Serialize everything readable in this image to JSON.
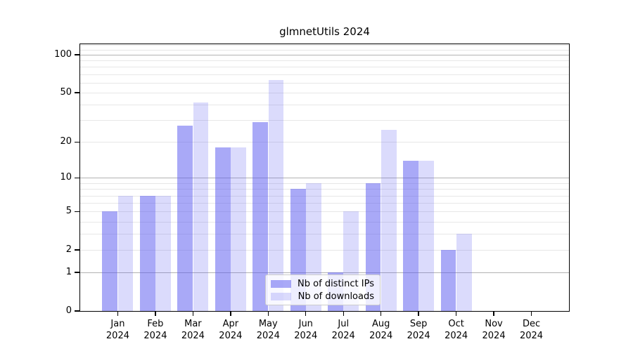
{
  "title": "glmnetUtils 2024",
  "colors": {
    "bar_base": "90,90,240",
    "ips_bar": "rgba(90,90,240,0.52)",
    "downloads_bar": "rgba(90,90,240,0.22)",
    "major_grid": "#b2b2b2",
    "minor_grid": "#e7e7e7",
    "axis": "#000000",
    "legend_border": "#cccccc"
  },
  "legend": {
    "items": [
      {
        "label": "Nb of distinct IPs",
        "color_key": "ips_bar"
      },
      {
        "label": "Nb of downloads",
        "color_key": "downloads_bar"
      }
    ]
  },
  "chart_data": {
    "type": "bar",
    "title": "glmnetUtils 2024",
    "categories": [
      "Jan 2024",
      "Feb 2024",
      "Mar 2024",
      "Apr 2024",
      "May 2024",
      "Jun 2024",
      "Jul 2024",
      "Aug 2024",
      "Sep 2024",
      "Oct 2024",
      "Nov 2024",
      "Dec 2024"
    ],
    "series": [
      {
        "name": "Nb of distinct IPs",
        "values": [
          5,
          7,
          27,
          18,
          29,
          8,
          1,
          9,
          14,
          2,
          0,
          0
        ]
      },
      {
        "name": "Nb of downloads",
        "values": [
          7,
          7,
          42,
          18,
          63,
          9,
          5,
          25,
          14,
          3,
          0,
          0
        ]
      }
    ],
    "xlabel": "",
    "ylabel": "",
    "yscale": "log1p",
    "ylim": [
      0,
      124
    ],
    "yticks": [
      0,
      1,
      2,
      5,
      10,
      20,
      50,
      100
    ],
    "major_gridlines": [
      1,
      10,
      100
    ],
    "minor_gridlines": [
      2,
      3,
      4,
      5,
      6,
      7,
      8,
      9,
      20,
      30,
      40,
      50,
      60,
      70,
      80,
      90,
      110,
      120
    ],
    "grid": "on",
    "legend_position": "inside lower center"
  }
}
